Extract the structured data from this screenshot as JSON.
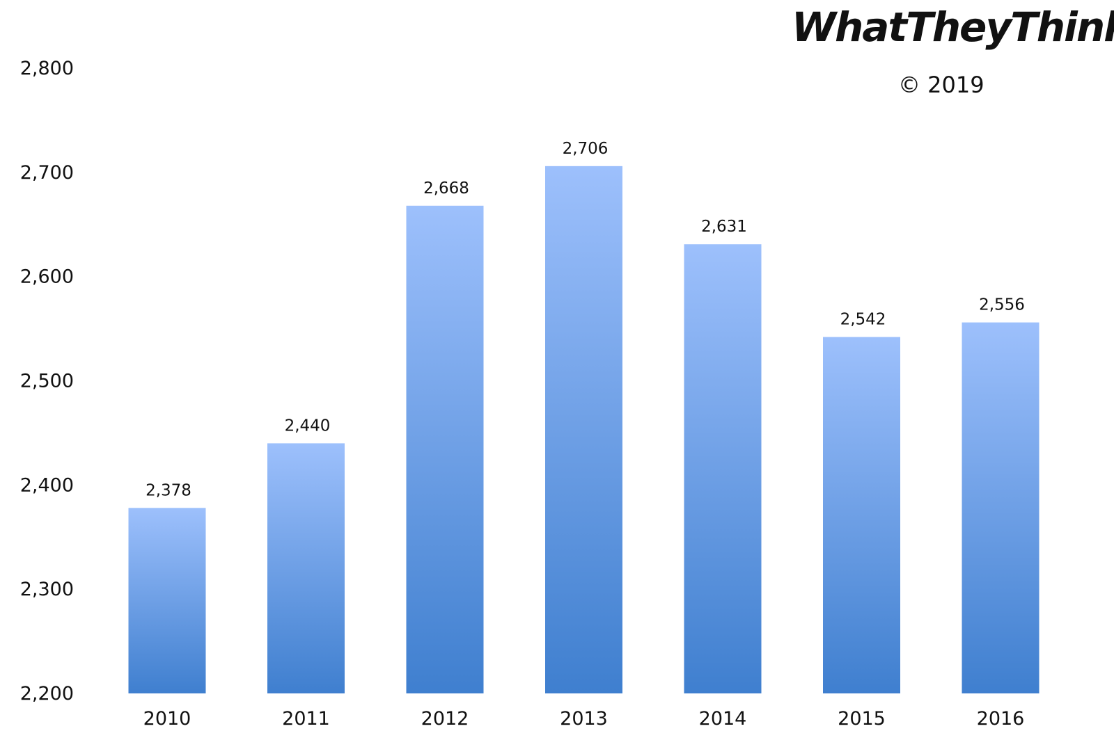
{
  "chart_data": {
    "type": "bar",
    "categories": [
      "2010",
      "2011",
      "2012",
      "2013",
      "2014",
      "2015",
      "2016"
    ],
    "values": [
      2378,
      2440,
      2668,
      2706,
      2631,
      2542,
      2556
    ],
    "data_labels": [
      "2,378",
      "2,440",
      "2,668",
      "2,706",
      "2,631",
      "2,542",
      "2,556"
    ],
    "ylim": [
      2200,
      2800
    ],
    "y_ticks": [
      2200,
      2300,
      2400,
      2500,
      2600,
      2700,
      2800
    ],
    "y_tick_labels": [
      "2,200",
      "2,300",
      "2,400",
      "2,500",
      "2,600",
      "2,700",
      "2,800"
    ],
    "grid": false,
    "bar_color_top": "#9dc0fc",
    "bar_color_bottom": "#3f7fcf"
  },
  "branding": {
    "logo_text": "WhatTheyThink",
    "logo_mark": "?",
    "logo_mark_color": "#b5121b",
    "copyright": "© 2019"
  }
}
